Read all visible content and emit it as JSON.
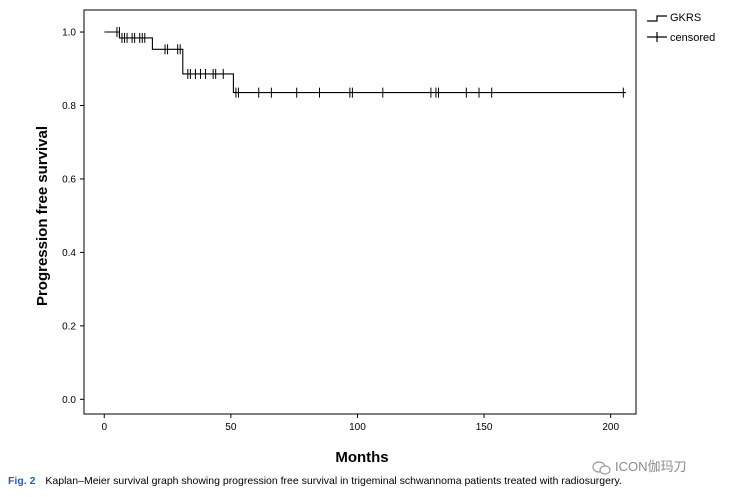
{
  "chart_data": {
    "type": "line",
    "xlabel": "Months",
    "ylabel": "Progression free survival",
    "xlim": [
      -8,
      210
    ],
    "ylim": [
      -0.04,
      1.06
    ],
    "xticks": [
      0,
      50,
      100,
      150,
      200
    ],
    "yticks": [
      0.0,
      0.2,
      0.4,
      0.6,
      0.8,
      1.0
    ],
    "xtick_labels": [
      "0",
      "50",
      "100",
      "150",
      "200"
    ],
    "ytick_labels": [
      "0.0",
      "0.2",
      "0.4",
      "0.6",
      "0.8",
      "1.0"
    ],
    "grid": false,
    "legend_position": "top-right",
    "legend": [
      "GKRS",
      "censored"
    ],
    "series": [
      {
        "name": "GKRS",
        "step_points": [
          [
            0,
            1.0
          ],
          [
            6,
            1.0
          ],
          [
            6,
            0.984
          ],
          [
            19,
            0.984
          ],
          [
            19,
            0.953
          ],
          [
            31,
            0.953
          ],
          [
            31,
            0.886
          ],
          [
            51,
            0.886
          ],
          [
            51,
            0.835
          ],
          [
            206,
            0.835
          ]
        ],
        "censored": [
          [
            5,
            1.0
          ],
          [
            6,
            1.0
          ],
          [
            7,
            0.984
          ],
          [
            8,
            0.984
          ],
          [
            9,
            0.984
          ],
          [
            11,
            0.984
          ],
          [
            12,
            0.984
          ],
          [
            14,
            0.984
          ],
          [
            15,
            0.984
          ],
          [
            16,
            0.984
          ],
          [
            24,
            0.953
          ],
          [
            25,
            0.953
          ],
          [
            29,
            0.953
          ],
          [
            30,
            0.953
          ],
          [
            33,
            0.886
          ],
          [
            34,
            0.886
          ],
          [
            36,
            0.886
          ],
          [
            38,
            0.886
          ],
          [
            40,
            0.886
          ],
          [
            43,
            0.886
          ],
          [
            44,
            0.886
          ],
          [
            47,
            0.886
          ],
          [
            52,
            0.835
          ],
          [
            53,
            0.835
          ],
          [
            61,
            0.835
          ],
          [
            66,
            0.835
          ],
          [
            76,
            0.835
          ],
          [
            85,
            0.835
          ],
          [
            97,
            0.835
          ],
          [
            98,
            0.835
          ],
          [
            110,
            0.835
          ],
          [
            129,
            0.835
          ],
          [
            131,
            0.835
          ],
          [
            132,
            0.835
          ],
          [
            143,
            0.835
          ],
          [
            148,
            0.835
          ],
          [
            153,
            0.835
          ],
          [
            205,
            0.835
          ]
        ]
      }
    ]
  },
  "caption": {
    "label": "Fig. 2",
    "text": "Kaplan–Meier survival graph showing progression free survival in trigeminal schwannoma patients treated with radiosurgery."
  },
  "watermark": {
    "text": "ICON伽玛刀",
    "icon": "wechat-icon"
  }
}
